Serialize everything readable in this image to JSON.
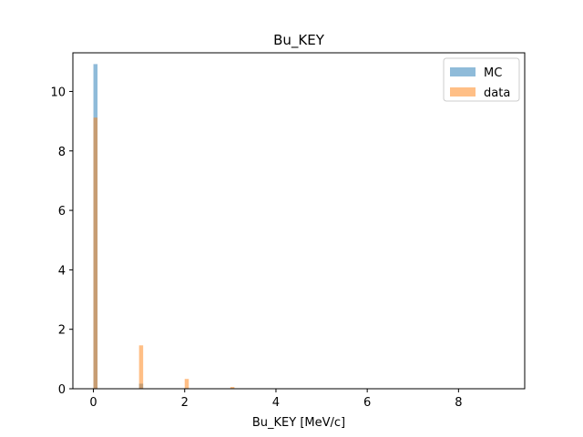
{
  "chart_data": {
    "type": "bar",
    "title": "Bu_KEY",
    "xlabel": "Bu_KEY [MeV/c]",
    "ylabel": "",
    "xlim": [
      -0.45,
      9.45
    ],
    "ylim": [
      0,
      11.3
    ],
    "xticks": [
      0,
      2,
      4,
      6,
      8
    ],
    "yticks": [
      0,
      2,
      4,
      6,
      8,
      10
    ],
    "bin_width": 0.09,
    "legend_position": "top-right",
    "series": [
      {
        "name": "MC",
        "color": "#1f77b4",
        "opacity": 0.5,
        "x": [
          0,
          1,
          2,
          3
        ],
        "values": [
          10.92,
          0.17,
          0.02,
          0.0
        ]
      },
      {
        "name": "data",
        "color": "#ff7f0e",
        "opacity": 0.5,
        "x": [
          0,
          1,
          2,
          3
        ],
        "values": [
          9.12,
          1.46,
          0.33,
          0.06
        ]
      }
    ]
  }
}
